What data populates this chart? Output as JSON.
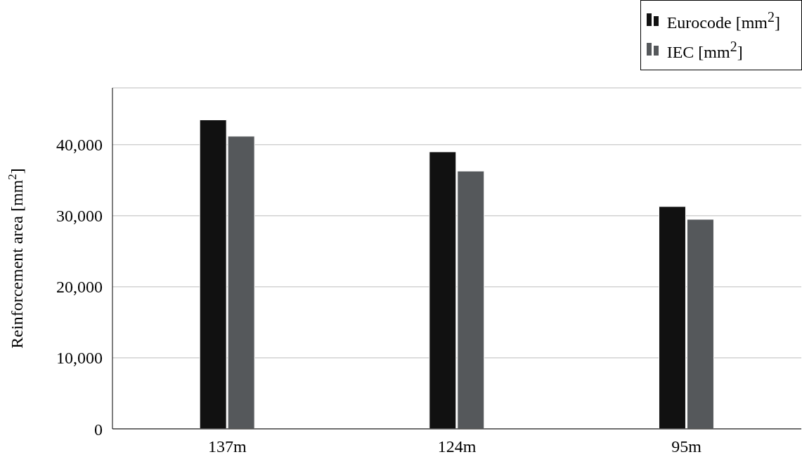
{
  "chart_data": {
    "type": "bar",
    "ylabel": "Reinforcement area [mm$^{2}$]",
    "categories": [
      "137m",
      "124m",
      "95m"
    ],
    "series": [
      {
        "name": "Eurocode [mm$^{2}$]",
        "color": "#111111",
        "values": [
          43500,
          39000,
          31300
        ]
      },
      {
        "name": "IEC [mm$^{2}$]",
        "color": "#55585b",
        "values": [
          41200,
          36300,
          29500
        ]
      }
    ],
    "ylim": [
      0,
      48000
    ],
    "yticks": [
      {
        "value": 0,
        "label": "0"
      },
      {
        "value": 10000,
        "label": "10,000"
      },
      {
        "value": 20000,
        "label": "20,000"
      },
      {
        "value": 30000,
        "label": "30,000"
      },
      {
        "value": 40000,
        "label": "40,000"
      }
    ],
    "grid": "y",
    "legend": "top right"
  }
}
